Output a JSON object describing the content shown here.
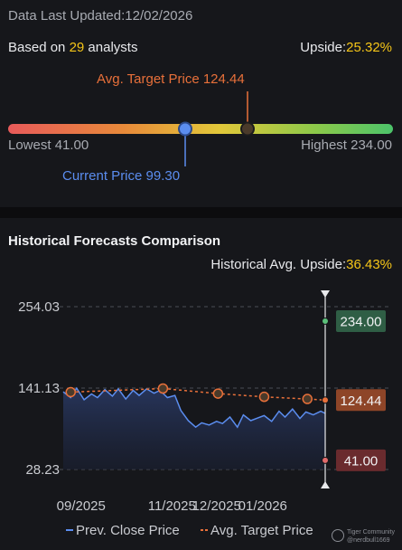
{
  "header": {
    "last_updated_label": "Data Last Updated:",
    "last_updated_value": "12/02/2026",
    "based_on_prefix": "Based on",
    "analyst_count": "29",
    "analysts_suffix": "analysts",
    "upside_label": "Upside:",
    "upside_value": "25.32%"
  },
  "range_bar": {
    "avg_target_label": "Avg. Target Price 124.44",
    "lowest_label": "Lowest 41.00",
    "highest_label": "Highest 234.00",
    "current_label": "Current Price 99.30",
    "low": 41.0,
    "high": 234.0,
    "avg_target": 124.44,
    "current": 99.3
  },
  "historical": {
    "title": "Historical Forecasts Comparison",
    "avg_upside_label": "Historical Avg. Upside:",
    "avg_upside_value": "36.43%"
  },
  "colors": {
    "price_line": "#5b8def",
    "target_line": "#e8703a",
    "high_badge": "#2f5e45",
    "avg_badge": "#8e4528",
    "low_badge": "#6a2b2e",
    "gradient": [
      "#e85a5a",
      "#e88a3a",
      "#e2c83a",
      "#8cc94a",
      "#4cc46a"
    ]
  },
  "chart_data": {
    "type": "line",
    "ylim": [
      28.23,
      254.03
    ],
    "y_ticks": [
      "254.03",
      "141.13",
      "28.23"
    ],
    "x_ticks": [
      "09/2025",
      "11/2025",
      "12/2025",
      "01/2026"
    ],
    "x_tick_dates": [
      "2025-09-01",
      "2025-11-01",
      "2025-12-01",
      "2026-01-01"
    ],
    "x_range": [
      "2025-08-20",
      "2026-02-12"
    ],
    "series": [
      {
        "name": "Prev. Close Price",
        "x": [
          "2025-08-20",
          "2025-08-25",
          "2025-08-29",
          "2025-09-03",
          "2025-09-08",
          "2025-09-12",
          "2025-09-17",
          "2025-09-22",
          "2025-09-26",
          "2025-10-01",
          "2025-10-06",
          "2025-10-10",
          "2025-10-15",
          "2025-10-20",
          "2025-10-24",
          "2025-10-29",
          "2025-11-03",
          "2025-11-07",
          "2025-11-12",
          "2025-11-17",
          "2025-11-21",
          "2025-11-26",
          "2025-12-01",
          "2025-12-05",
          "2025-12-10",
          "2025-12-15",
          "2025-12-19",
          "2025-12-24",
          "2025-12-29",
          "2026-01-02",
          "2026-01-07",
          "2026-01-12",
          "2026-01-16",
          "2026-01-21",
          "2026-01-26",
          "2026-01-30",
          "2026-02-04",
          "2026-02-09",
          "2026-02-12"
        ],
        "y": [
          136,
          128,
          141,
          125,
          133,
          128,
          139,
          130,
          140,
          126,
          138,
          131,
          140,
          134,
          138,
          128,
          131,
          110,
          96,
          87,
          93,
          90,
          95,
          92,
          101,
          87,
          104,
          96,
          100,
          103,
          95,
          109,
          101,
          112,
          99,
          108,
          104,
          109,
          106
        ]
      },
      {
        "name": "Avg. Target Price",
        "x": [
          "2025-08-25",
          "2025-10-26",
          "2025-12-02",
          "2026-01-02",
          "2026-01-31",
          "2026-02-12"
        ],
        "y": [
          135.5,
          140.5,
          133.5,
          129,
          126,
          124.44
        ]
      }
    ],
    "end_labels": {
      "high": "234.00",
      "avg": "124.44",
      "low": "41.00"
    },
    "end_values": {
      "high": 234.0,
      "avg": 124.44,
      "low": 41.0
    },
    "legend": [
      "Prev. Close Price",
      "Avg. Target Price"
    ],
    "legend_position": "bottom",
    "grid": true
  },
  "watermark": {
    "line1": "Tiger Community",
    "line2": "@nerdbull1669"
  }
}
